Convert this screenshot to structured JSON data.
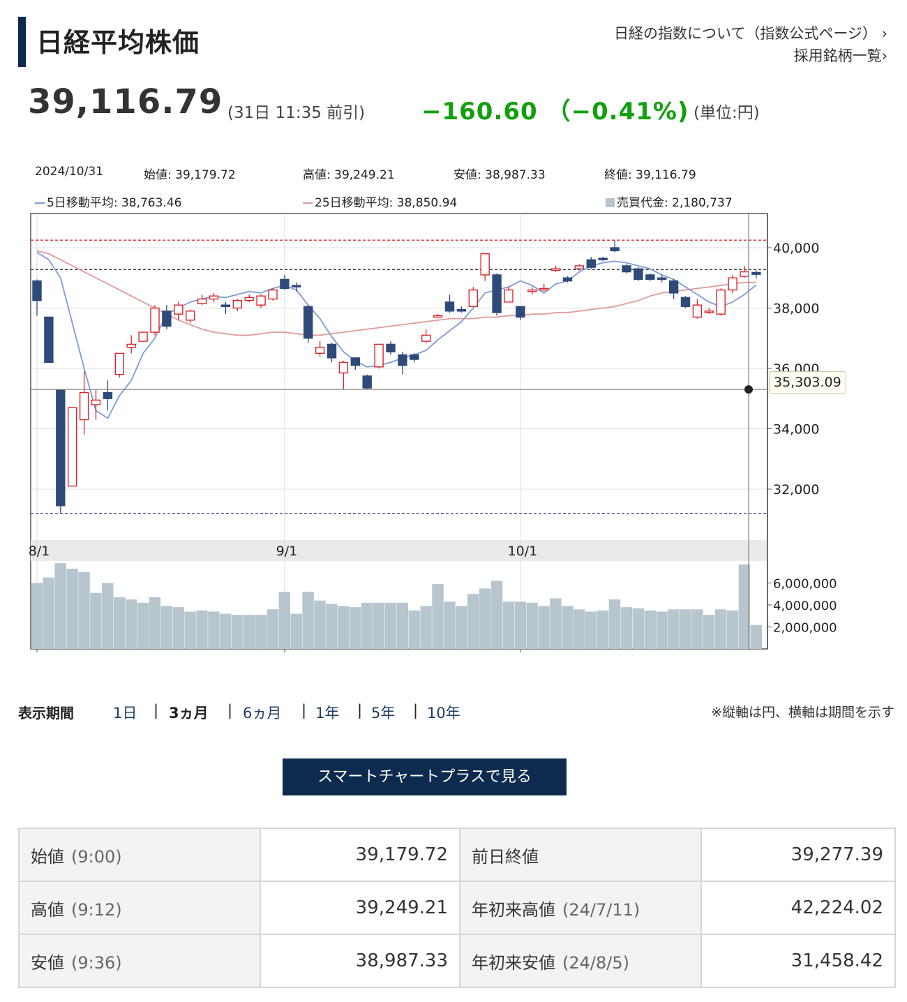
{
  "header": {
    "title": "日経平均株価",
    "link_index": "日経の指数について（指数公式ページ）",
    "link_constituents": "採用銘柄一覧",
    "chevron": "chevron-right-icon"
  },
  "quote": {
    "price": "39,116.79",
    "time": "(31日 11:35 前引)",
    "change": "−160.60 （−0.41%)",
    "unit": "(単位:円)",
    "change_color": "#13a00e"
  },
  "chart_info": {
    "date": "2024/10/31",
    "open": "始値: 39,179.72",
    "high": "高値: 39,249.21",
    "low": "安値: 38,987.33",
    "close": "終値: 39,116.79",
    "ma5": "5日移動平均: 38,763.46",
    "ma25": "25日移動平均: 38,850.94",
    "turnover": "売買代金: 2,180,737"
  },
  "chart_callout": "35,303.09",
  "chart_data": {
    "type": "candlestick",
    "price_ticks": [
      "32,000",
      "34,000",
      "36,000",
      "38,000",
      "40,000"
    ],
    "price_tick_values": [
      32000,
      34000,
      36000,
      38000,
      40000
    ],
    "volume_ticks": [
      "2,000,000",
      "4,000,000",
      "6,000,000"
    ],
    "volume_tick_values": [
      2000000,
      4000000,
      6000000
    ],
    "x_ticks": [
      {
        "label": "8/1",
        "index": 0
      },
      {
        "label": "9/1",
        "index": 21
      },
      {
        "label": "10/1",
        "index": 41
      }
    ],
    "crosshair_price": 35303.09,
    "year_high": 40250,
    "year_low": 31200,
    "prev_close": 39277.39,
    "candles": [
      {
        "o": 38900,
        "c": 38250,
        "h": 38950,
        "l": 37750,
        "v": 6000000
      },
      {
        "o": 37700,
        "c": 36200,
        "h": 37700,
        "l": 36200,
        "v": 6500000
      },
      {
        "o": 35300,
        "c": 31450,
        "h": 35300,
        "l": 31200,
        "v": 7800000
      },
      {
        "o": 32100,
        "c": 34700,
        "h": 34700,
        "l": 32100,
        "v": 7300000
      },
      {
        "o": 34300,
        "c": 35200,
        "h": 35900,
        "l": 33800,
        "v": 7000000
      },
      {
        "o": 34800,
        "c": 34950,
        "h": 35300,
        "l": 34300,
        "v": 5100000
      },
      {
        "o": 35200,
        "c": 35000,
        "h": 35600,
        "l": 34600,
        "v": 6000000
      },
      {
        "o": 35800,
        "c": 36500,
        "h": 36500,
        "l": 35700,
        "v": 4700000
      },
      {
        "o": 36700,
        "c": 36800,
        "h": 37100,
        "l": 36500,
        "v": 4500000
      },
      {
        "o": 36900,
        "c": 37200,
        "h": 37200,
        "l": 36900,
        "v": 4200000
      },
      {
        "o": 37200,
        "c": 38000,
        "h": 38100,
        "l": 37100,
        "v": 4700000
      },
      {
        "o": 37900,
        "c": 37400,
        "h": 38100,
        "l": 37300,
        "v": 3900000
      },
      {
        "o": 37800,
        "c": 38100,
        "h": 38200,
        "l": 37600,
        "v": 3800000
      },
      {
        "o": 37600,
        "c": 37900,
        "h": 37950,
        "l": 37500,
        "v": 3400000
      },
      {
        "o": 38150,
        "c": 38300,
        "h": 38450,
        "l": 38100,
        "v": 3500000
      },
      {
        "o": 38300,
        "c": 38400,
        "h": 38500,
        "l": 38200,
        "v": 3400000
      },
      {
        "o": 38100,
        "c": 38050,
        "h": 38200,
        "l": 37800,
        "v": 3200000
      },
      {
        "o": 38000,
        "c": 38250,
        "h": 38300,
        "l": 37900,
        "v": 3100000
      },
      {
        "o": 38250,
        "c": 38350,
        "h": 38450,
        "l": 38200,
        "v": 3100000
      },
      {
        "o": 38100,
        "c": 38400,
        "h": 38450,
        "l": 38000,
        "v": 3100000
      },
      {
        "o": 38300,
        "c": 38600,
        "h": 38650,
        "l": 38250,
        "v": 3600000
      },
      {
        "o": 38950,
        "c": 38650,
        "h": 39100,
        "l": 38600,
        "v": 5200000
      },
      {
        "o": 38750,
        "c": 38700,
        "h": 38850,
        "l": 38550,
        "v": 3200000
      },
      {
        "o": 38050,
        "c": 37000,
        "h": 38100,
        "l": 36850,
        "v": 5200000
      },
      {
        "o": 36500,
        "c": 36700,
        "h": 36900,
        "l": 36400,
        "v": 4400000
      },
      {
        "o": 36800,
        "c": 36350,
        "h": 36850,
        "l": 36200,
        "v": 4100000
      },
      {
        "o": 35850,
        "c": 36200,
        "h": 36250,
        "l": 35300,
        "v": 3900000
      },
      {
        "o": 36350,
        "c": 36100,
        "h": 36350,
        "l": 35950,
        "v": 3800000
      },
      {
        "o": 35750,
        "c": 35350,
        "h": 35800,
        "l": 35300,
        "v": 4200000
      },
      {
        "o": 36050,
        "c": 36800,
        "h": 36800,
        "l": 36000,
        "v": 4200000
      },
      {
        "o": 36800,
        "c": 36550,
        "h": 36900,
        "l": 36450,
        "v": 4200000
      },
      {
        "o": 36450,
        "c": 36100,
        "h": 36550,
        "l": 35800,
        "v": 4200000
      },
      {
        "o": 36450,
        "c": 36300,
        "h": 36500,
        "l": 36200,
        "v": 3500000
      },
      {
        "o": 36900,
        "c": 37100,
        "h": 37300,
        "l": 36850,
        "v": 3900000
      },
      {
        "o": 37700,
        "c": 37750,
        "h": 37800,
        "l": 37700,
        "v": 5900000
      },
      {
        "o": 38200,
        "c": 37900,
        "h": 38450,
        "l": 37850,
        "v": 4300000
      },
      {
        "o": 37950,
        "c": 37900,
        "h": 38050,
        "l": 37850,
        "v": 3900000
      },
      {
        "o": 38050,
        "c": 38600,
        "h": 38700,
        "l": 38050,
        "v": 5000000
      },
      {
        "o": 39100,
        "c": 39800,
        "h": 39800,
        "l": 38900,
        "v": 5500000
      },
      {
        "o": 39100,
        "c": 37850,
        "h": 39150,
        "l": 37750,
        "v": 6200000
      },
      {
        "o": 38200,
        "c": 38600,
        "h": 38700,
        "l": 38200,
        "v": 4300000
      },
      {
        "o": 38050,
        "c": 37700,
        "h": 38050,
        "l": 37600,
        "v": 4300000
      },
      {
        "o": 38550,
        "c": 38600,
        "h": 38700,
        "l": 38450,
        "v": 4200000
      },
      {
        "o": 38600,
        "c": 38650,
        "h": 38800,
        "l": 38550,
        "v": 3900000
      },
      {
        "o": 39250,
        "c": 39300,
        "h": 39400,
        "l": 39200,
        "v": 4600000
      },
      {
        "o": 39000,
        "c": 38900,
        "h": 39050,
        "l": 38850,
        "v": 3900000
      },
      {
        "o": 39300,
        "c": 39400,
        "h": 39450,
        "l": 39250,
        "v": 3600000
      },
      {
        "o": 39600,
        "c": 39350,
        "h": 39700,
        "l": 39300,
        "v": 3400000
      },
      {
        "o": 39650,
        "c": 39600,
        "h": 39700,
        "l": 39550,
        "v": 3500000
      },
      {
        "o": 40000,
        "c": 39900,
        "h": 40250,
        "l": 39850,
        "v": 4500000
      },
      {
        "o": 39400,
        "c": 39200,
        "h": 39450,
        "l": 39150,
        "v": 3800000
      },
      {
        "o": 39300,
        "c": 38950,
        "h": 39350,
        "l": 38900,
        "v": 3700000
      },
      {
        "o": 39100,
        "c": 38950,
        "h": 39150,
        "l": 38900,
        "v": 3500000
      },
      {
        "o": 39000,
        "c": 38950,
        "h": 39100,
        "l": 38850,
        "v": 3400000
      },
      {
        "o": 38900,
        "c": 38500,
        "h": 38950,
        "l": 38300,
        "v": 3600000
      },
      {
        "o": 38350,
        "c": 38050,
        "h": 38400,
        "l": 38000,
        "v": 3600000
      },
      {
        "o": 37700,
        "c": 38100,
        "h": 38300,
        "l": 37650,
        "v": 3600000
      },
      {
        "o": 37900,
        "c": 37900,
        "h": 38000,
        "l": 37800,
        "v": 3100000
      },
      {
        "o": 37800,
        "c": 38600,
        "h": 38650,
        "l": 37750,
        "v": 3600000
      },
      {
        "o": 38600,
        "c": 39000,
        "h": 39100,
        "l": 38500,
        "v": 3500000
      },
      {
        "o": 39050,
        "c": 39200,
        "h": 39400,
        "l": 39000,
        "v": 7700000
      },
      {
        "o": 39180,
        "c": 39117,
        "h": 39249,
        "l": 38987,
        "v": 2180737
      }
    ],
    "ma5": [
      39850,
      39600,
      39000,
      37500,
      36000,
      34600,
      34350,
      35100,
      35600,
      36500,
      37000,
      37800,
      38000,
      38200,
      38300,
      38380,
      38350,
      38450,
      38550,
      38500,
      38650,
      38750,
      38600,
      38100,
      37650,
      37050,
      36550,
      36250,
      36050,
      36100,
      36200,
      36350,
      36450,
      36600,
      36950,
      37250,
      37550,
      38000,
      38500,
      38600,
      38700,
      38900,
      38750,
      38500,
      38800,
      38900,
      39200,
      39400,
      39500,
      39550,
      39500,
      39400,
      39300,
      39100,
      38950,
      38700,
      38450,
      38200,
      38050,
      38200,
      38450,
      38763
    ],
    "ma25": [
      39900,
      39800,
      39600,
      39400,
      39200,
      39000,
      38800,
      38600,
      38400,
      38200,
      38000,
      37800,
      37600,
      37450,
      37300,
      37200,
      37150,
      37100,
      37100,
      37150,
      37200,
      37200,
      37150,
      37100,
      37100,
      37150,
      37200,
      37250,
      37300,
      37350,
      37400,
      37450,
      37500,
      37550,
      37600,
      37650,
      37650,
      37650,
      37700,
      37700,
      37750,
      37750,
      37800,
      37800,
      37850,
      37850,
      37900,
      37950,
      38000,
      38050,
      38150,
      38250,
      38400,
      38500,
      38550,
      38600,
      38650,
      38700,
      38750,
      38800,
      38850,
      38851
    ]
  },
  "period": {
    "label": "表示期間",
    "options": [
      "1日",
      "3ヵ月",
      "6ヵ月",
      "1年",
      "5年",
      "10年"
    ],
    "selected": "3ヵ月",
    "separator": "|"
  },
  "note": "※縦軸は円、横軸は期間を示す",
  "smart_chart_button": "スマートチャートプラスで見る",
  "stats": {
    "open_label": "始値",
    "open_time": "(9:00)",
    "open_value": "39,179.72",
    "prev_close_label": "前日終値",
    "prev_close_value": "39,277.39",
    "high_label": "高値",
    "high_time": "(9:12)",
    "high_value": "39,249.21",
    "ytd_high_label": "年初来高値",
    "ytd_high_date": "(24/7/11)",
    "ytd_high_value": "42,224.02",
    "low_label": "安値",
    "low_time": "(9:36)",
    "low_value": "38,987.33",
    "ytd_low_label": "年初来安値",
    "ytd_low_date": "(24/8/5)",
    "ytd_low_value": "31,458.42"
  },
  "colors": {
    "navy": "#0d2b4e",
    "up_candle": "#d9242b",
    "down_candle": "#2e4a78",
    "ma5": "#7d9ad6",
    "ma25": "#e09a9a",
    "volume": "#b7c5ce"
  }
}
